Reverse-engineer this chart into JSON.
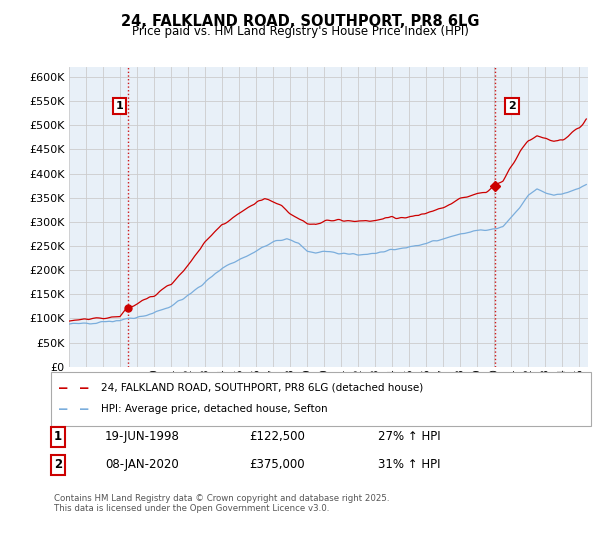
{
  "title_line1": "24, FALKLAND ROAD, SOUTHPORT, PR8 6LG",
  "title_line2": "Price paid vs. HM Land Registry's House Price Index (HPI)",
  "ytick_values": [
    0,
    50000,
    100000,
    150000,
    200000,
    250000,
    300000,
    350000,
    400000,
    450000,
    500000,
    550000,
    600000
  ],
  "ylim": [
    0,
    620000
  ],
  "xlim_start": 1995.0,
  "xlim_end": 2025.5,
  "hpi_color": "#7aaddc",
  "price_color": "#cc0000",
  "vline_color": "#cc0000",
  "grid_color": "#cccccc",
  "plot_bg_color": "#e8f0f8",
  "legend_label_price": "24, FALKLAND ROAD, SOUTHPORT, PR8 6LG (detached house)",
  "legend_label_hpi": "HPI: Average price, detached house, Sefton",
  "sale1_date": "19-JUN-1998",
  "sale1_price": "£122,500",
  "sale1_hpi": "27% ↑ HPI",
  "sale1_x": 1998.47,
  "sale1_y": 122500,
  "sale2_date": "08-JAN-2020",
  "sale2_price": "£375,000",
  "sale2_hpi": "31% ↑ HPI",
  "sale2_x": 2020.03,
  "sale2_y": 375000,
  "footnote": "Contains HM Land Registry data © Crown copyright and database right 2025.\nThis data is licensed under the Open Government Licence v3.0.",
  "background_color": "#ffffff"
}
